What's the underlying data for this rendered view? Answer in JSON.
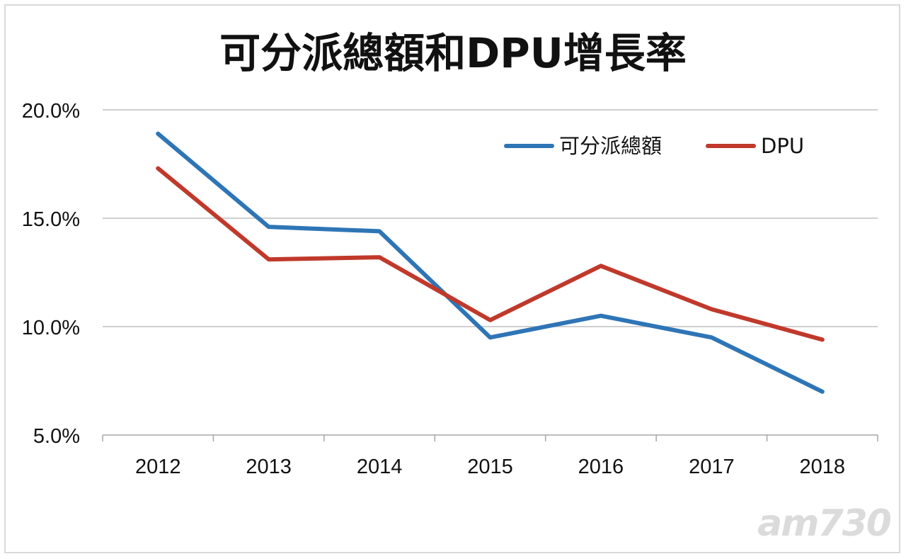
{
  "chart_data": {
    "type": "line",
    "title": "可分派總額和DPU增長率",
    "xlabel": "",
    "ylabel": "",
    "categories": [
      "2012",
      "2013",
      "2014",
      "2015",
      "2016",
      "2017",
      "2018"
    ],
    "series": [
      {
        "name": "可分派總額",
        "color": "#2e75b6",
        "values": [
          18.9,
          14.6,
          14.4,
          9.5,
          10.5,
          9.5,
          7.0
        ]
      },
      {
        "name": "DPU",
        "color": "#c0392b",
        "values": [
          17.3,
          13.1,
          13.2,
          10.3,
          12.8,
          10.8,
          9.4
        ]
      }
    ],
    "ylim": [
      5.0,
      20.0
    ],
    "yticks": [
      "5.0%",
      "10.0%",
      "15.0%",
      "20.0%"
    ],
    "grid": true,
    "legend": "top-right"
  },
  "watermark": "am730"
}
